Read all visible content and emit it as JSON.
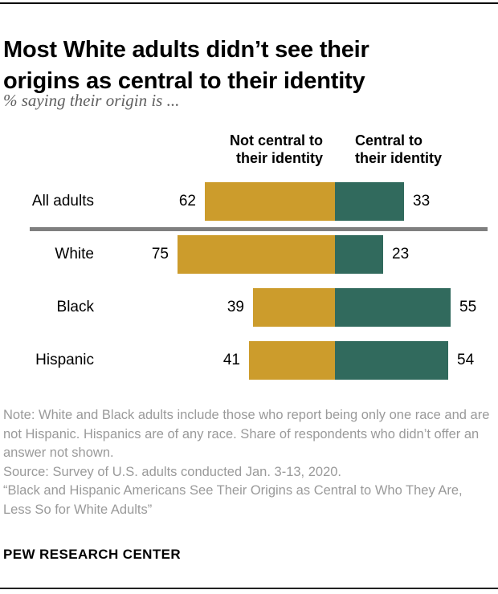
{
  "page": {
    "title": "Most White adults didn’t see their origins as central to their identity",
    "title_lines": [
      "Most White adults didn’t see their",
      "origins as central to their identity"
    ],
    "subtitle": "% saying their origin is ...",
    "brand": "PEW RESEARCH CENTER"
  },
  "notes": {
    "note": "Note: White and Black adults include those who report being only one race and are not Hispanic. Hispanics are of any race. Share of respondents who didn’t offer an answer not shown.",
    "source": "Source: Survey of U.S. adults conducted Jan. 3-13, 2020.",
    "report": "“Black and Hispanic Americans See Their Origins as Central to Who They Are, Less So for White Adults”"
  },
  "chart_data": {
    "type": "bar",
    "orientation": "horizontal-diverging-stacked",
    "title": "Most White adults didn’t see their origins as central to their identity",
    "subtitle": "% saying their origin is ...",
    "categories": [
      "All adults",
      "White",
      "Black",
      "Hispanic"
    ],
    "series": [
      {
        "name": "Not central to their identity",
        "side": "left",
        "color": "#cc9c2c",
        "values": [
          62,
          75,
          39,
          41
        ]
      },
      {
        "name": "Central to their identity",
        "side": "right",
        "color": "#316a5d",
        "values": [
          33,
          23,
          55,
          54
        ]
      }
    ],
    "header_left_lines": [
      "Not central to",
      "their identity"
    ],
    "header_right_lines": [
      "Central to",
      "their identity"
    ],
    "value_labels_shown": true,
    "axes_hidden": true,
    "separator_after_first_row": true,
    "separator_color": "#7f7f7f",
    "unit": "percent"
  }
}
